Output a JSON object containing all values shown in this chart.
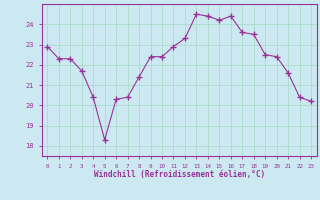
{
  "x": [
    0,
    1,
    2,
    3,
    4,
    5,
    6,
    7,
    8,
    9,
    10,
    11,
    12,
    13,
    14,
    15,
    16,
    17,
    18,
    19,
    20,
    21,
    22,
    23
  ],
  "y": [
    22.9,
    22.3,
    22.3,
    21.7,
    20.4,
    18.3,
    20.3,
    20.4,
    21.4,
    22.4,
    22.4,
    22.9,
    23.3,
    24.5,
    24.4,
    24.2,
    24.4,
    23.6,
    23.5,
    22.5,
    22.4,
    21.6,
    20.4,
    20.2
  ],
  "xlabel": "Windchill (Refroidissement éolien,°C)",
  "ylim": [
    17.5,
    25.0
  ],
  "yticks": [
    18,
    19,
    20,
    21,
    22,
    23,
    24
  ],
  "xticks": [
    0,
    1,
    2,
    3,
    4,
    5,
    6,
    7,
    8,
    9,
    10,
    11,
    12,
    13,
    14,
    15,
    16,
    17,
    18,
    19,
    20,
    21,
    22,
    23
  ],
  "line_color": "#993399",
  "marker": "+",
  "marker_size": 5,
  "bg_color": "#cce8f0",
  "grid_color": "#aaddcc",
  "axes_color": "#993399",
  "tick_label_color": "#993399",
  "xlabel_color": "#993399",
  "spine_color": "#993399"
}
